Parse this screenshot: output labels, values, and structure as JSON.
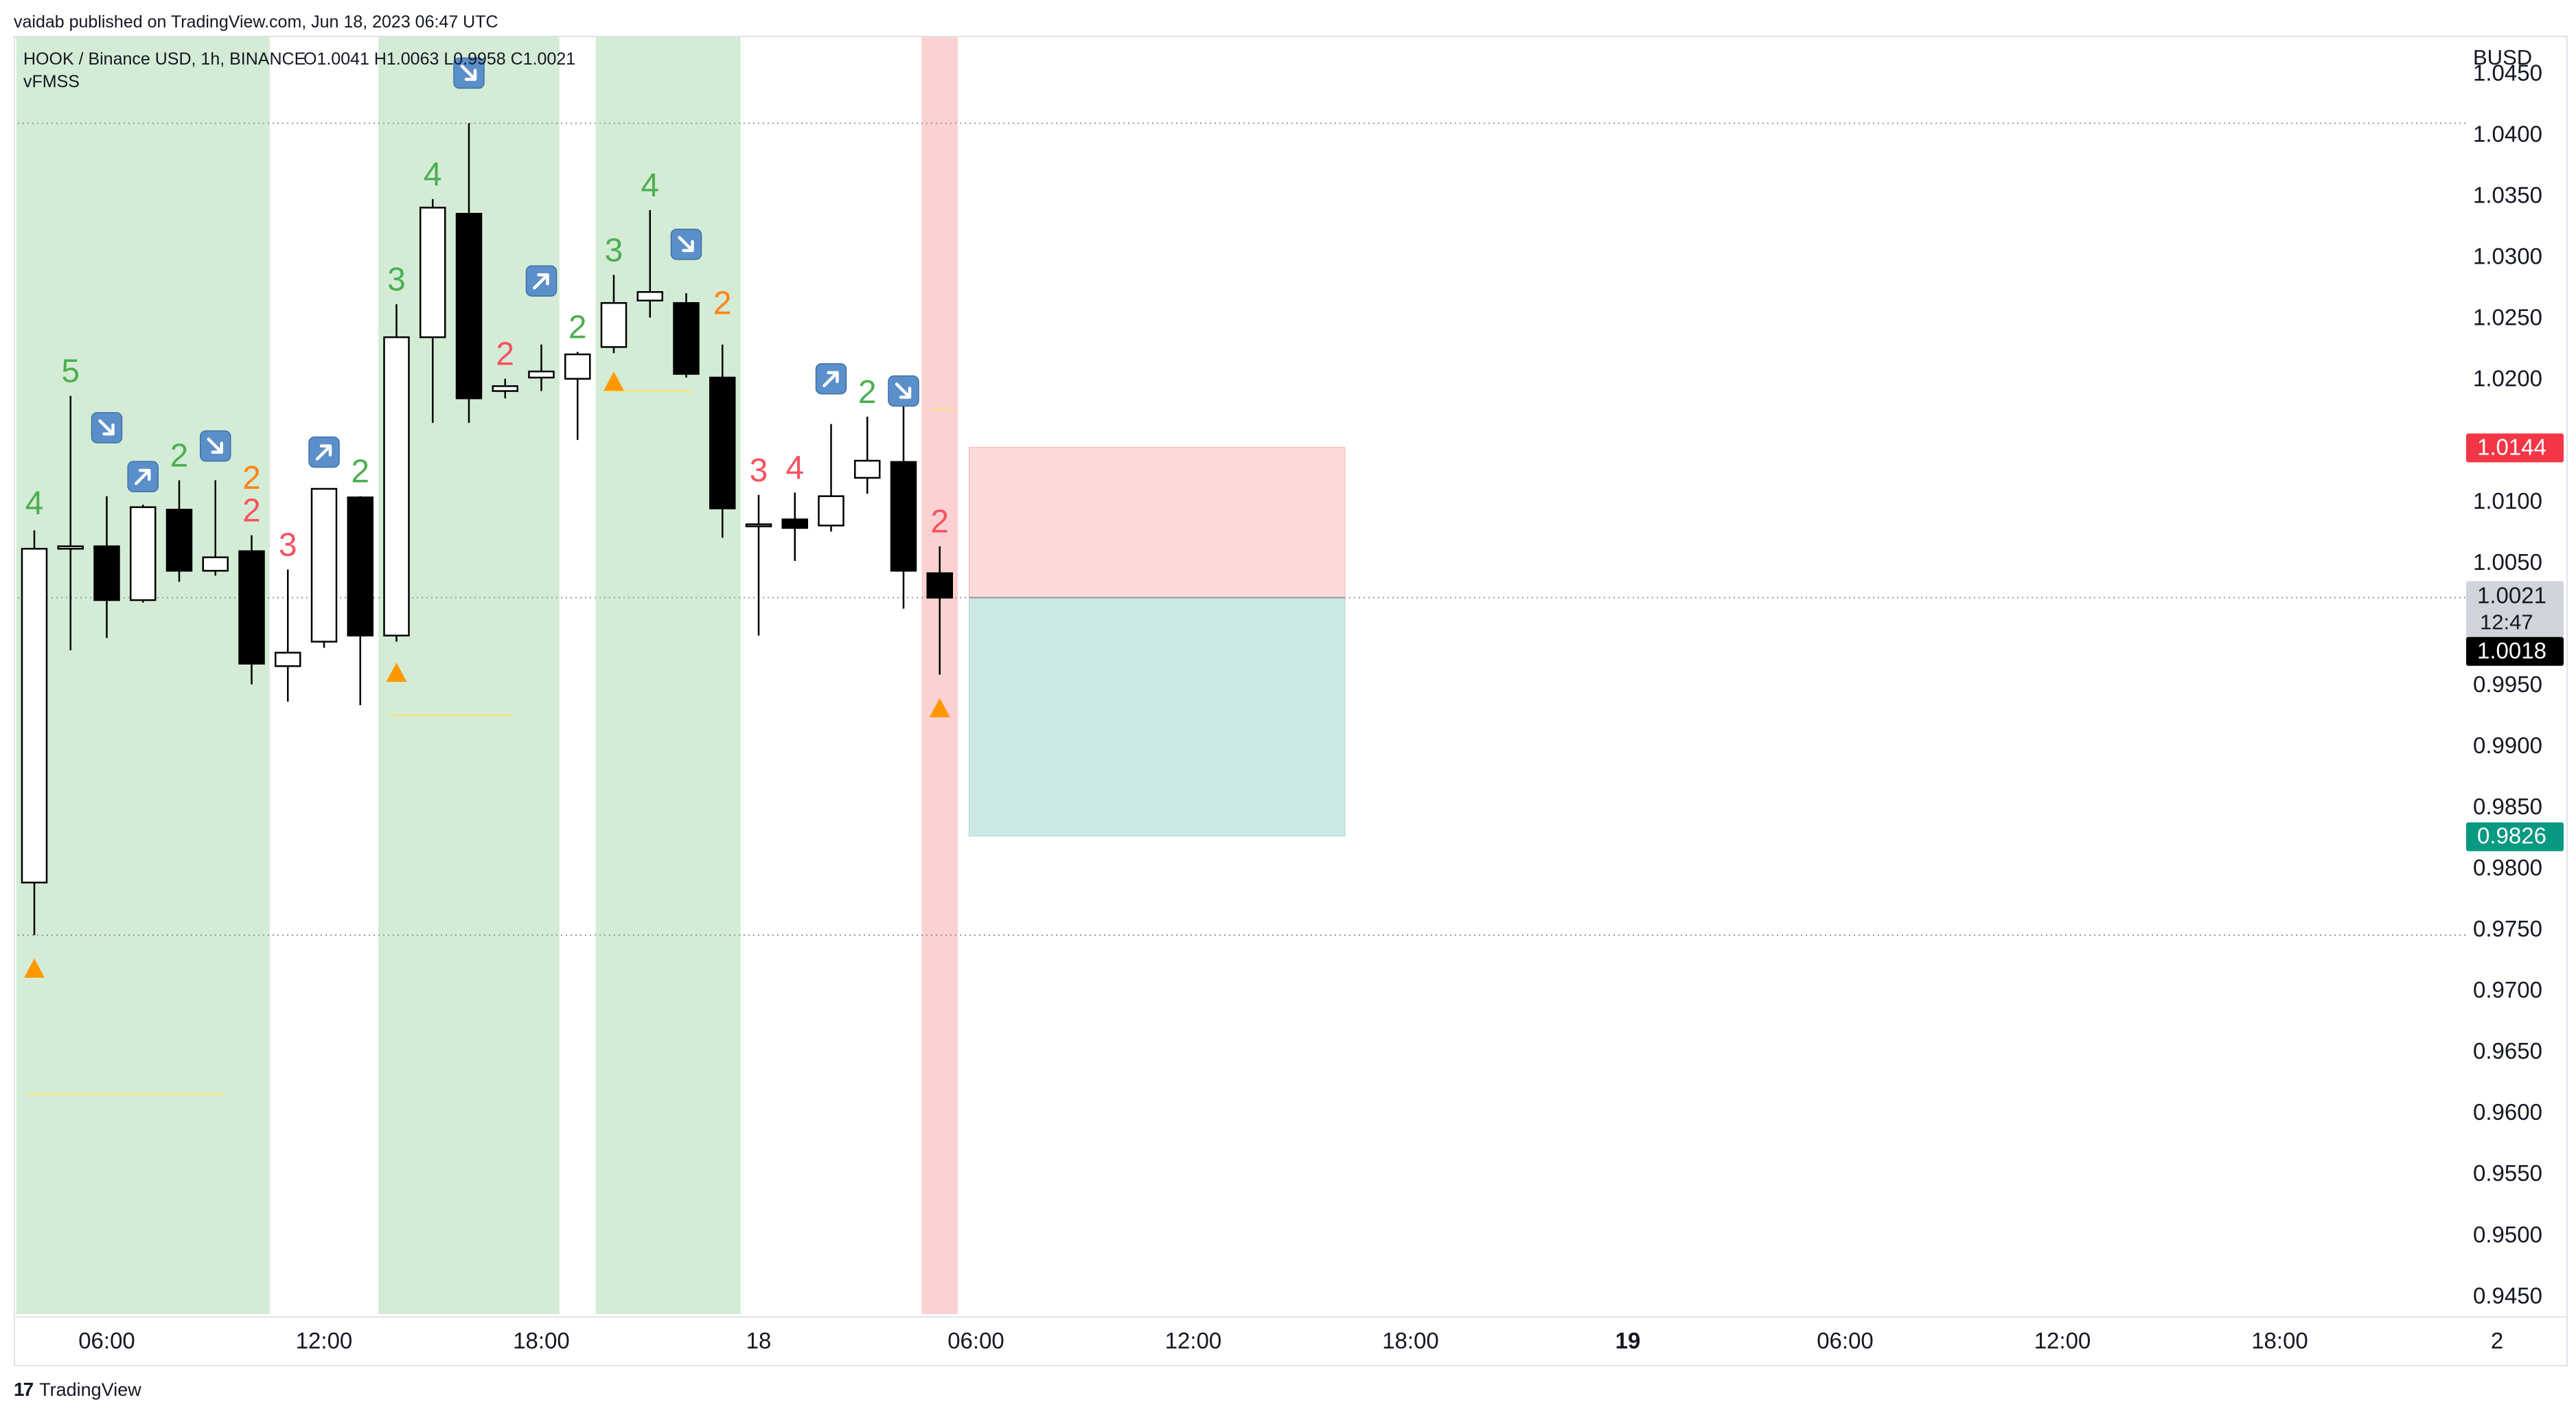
{
  "header": {
    "published": "vaidab published on TradingView.com, Jun 18, 2023 06:47 UTC"
  },
  "footer": {
    "logo_text": "TradingView",
    "logo_mark": "17"
  },
  "chart_data": {
    "type": "candlestick",
    "symbol_line": "HOOK / Binance USD, 1h, BINANCE",
    "ohlc_label": "O1.0041  H1.0063  L0.9958  C1.0021",
    "indicator": "vFMSS",
    "currency": "BUSD",
    "ylim": [
      0.9435,
      1.0475
    ],
    "y_ticks": [
      "1.0450",
      "1.0400",
      "1.0350",
      "1.0300",
      "1.0250",
      "1.0200",
      "1.0100",
      "1.0050",
      "0.9950",
      "0.9900",
      "0.9850",
      "0.9800",
      "0.9750",
      "0.9700",
      "0.9650",
      "0.9600",
      "0.9550",
      "0.9500",
      "0.9450"
    ],
    "x_ticks": [
      {
        "label": "06:00",
        "bold": false
      },
      {
        "label": "12:00",
        "bold": false
      },
      {
        "label": "18:00",
        "bold": false
      },
      {
        "label": "18",
        "bold": false
      },
      {
        "label": "06:00",
        "bold": false
      },
      {
        "label": "12:00",
        "bold": false
      },
      {
        "label": "18:00",
        "bold": false
      },
      {
        "label": "19",
        "bold": true
      },
      {
        "label": "06:00",
        "bold": false
      },
      {
        "label": "12:00",
        "bold": false
      },
      {
        "label": "18:00",
        "bold": false
      },
      {
        "label": "2",
        "bold": false
      }
    ],
    "candles": [
      {
        "o": 0.9788,
        "h": 1.0076,
        "l": 0.9745,
        "c": 1.0061
      },
      {
        "o": 1.0061,
        "h": 1.0186,
        "l": 0.9978,
        "c": 1.0063
      },
      {
        "o": 1.0063,
        "h": 1.0104,
        "l": 0.9988,
        "c": 1.0019
      },
      {
        "o": 1.0019,
        "h": 1.0097,
        "l": 1.0017,
        "c": 1.0095
      },
      {
        "o": 1.0093,
        "h": 1.0117,
        "l": 1.0034,
        "c": 1.0043
      },
      {
        "o": 1.0043,
        "h": 1.0117,
        "l": 1.0039,
        "c": 1.0054
      },
      {
        "o": 1.0059,
        "h": 1.0072,
        "l": 0.995,
        "c": 0.9967
      },
      {
        "o": 0.9965,
        "h": 1.0044,
        "l": 0.9936,
        "c": 0.9976
      },
      {
        "o": 0.9985,
        "h": 1.011,
        "l": 0.998,
        "c": 1.011
      },
      {
        "o": 1.0103,
        "h": 1.0104,
        "l": 0.9933,
        "c": 0.999
      },
      {
        "o": 0.999,
        "h": 1.0261,
        "l": 0.9985,
        "c": 1.0234
      },
      {
        "o": 1.0234,
        "h": 1.0347,
        "l": 1.0164,
        "c": 1.034
      },
      {
        "o": 1.0335,
        "h": 1.0409,
        "l": 1.0164,
        "c": 1.0184
      },
      {
        "o": 1.019,
        "h": 1.02,
        "l": 1.0184,
        "c": 1.0194
      },
      {
        "o": 1.0201,
        "h": 1.0228,
        "l": 1.019,
        "c": 1.0206
      },
      {
        "o": 1.02,
        "h": 1.0222,
        "l": 1.015,
        "c": 1.022
      },
      {
        "o": 1.0226,
        "h": 1.0285,
        "l": 1.0221,
        "c": 1.0262
      },
      {
        "o": 1.0264,
        "h": 1.0338,
        "l": 1.025,
        "c": 1.0271
      },
      {
        "o": 1.0262,
        "h": 1.027,
        "l": 1.0201,
        "c": 1.0204
      },
      {
        "o": 1.0201,
        "h": 1.0228,
        "l": 1.007,
        "c": 1.0094
      },
      {
        "o": 1.0081,
        "h": 1.0105,
        "l": 0.999,
        "c": 1.0081
      },
      {
        "o": 1.0085,
        "h": 1.0107,
        "l": 1.0051,
        "c": 1.0078
      },
      {
        "o": 1.008,
        "h": 1.0163,
        "l": 1.0075,
        "c": 1.0104
      },
      {
        "o": 1.0119,
        "h": 1.0169,
        "l": 1.0106,
        "c": 1.0133
      },
      {
        "o": 1.0132,
        "h": 1.0178,
        "l": 1.0012,
        "c": 1.0043
      },
      {
        "o": 1.0041,
        "h": 1.0063,
        "l": 0.9958,
        "c": 1.0021
      }
    ],
    "count_labels": [
      {
        "bar": 0,
        "text": "4",
        "color": "#4caf50",
        "price": 1.0078,
        "pos": "above"
      },
      {
        "bar": 1,
        "text": "5",
        "color": "#4caf50",
        "price": 1.0186,
        "pos": "above"
      },
      {
        "bar": 4,
        "text": "2",
        "color": "#4caf50",
        "price": 1.0117,
        "pos": "above"
      },
      {
        "bar": 6,
        "text": "2",
        "color": "#f7525f",
        "price": 1.0072,
        "pos": "above"
      },
      {
        "bar": 7,
        "text": "3",
        "color": "#f7525f",
        "price": 1.0044,
        "pos": "above"
      },
      {
        "bar": 9,
        "text": "2",
        "color": "#4caf50",
        "price": 1.0104,
        "pos": "above"
      },
      {
        "bar": 10,
        "text": "3",
        "color": "#4caf50",
        "price": 1.0261,
        "pos": "above"
      },
      {
        "bar": 11,
        "text": "4",
        "color": "#4caf50",
        "price": 1.0347,
        "pos": "above"
      },
      {
        "bar": 13,
        "text": "2",
        "color": "#f7525f",
        "price": 1.02,
        "pos": "above"
      },
      {
        "bar": 15,
        "text": "2",
        "color": "#4caf50",
        "price": 1.0222,
        "pos": "above"
      },
      {
        "bar": 16,
        "text": "3",
        "color": "#4caf50",
        "price": 1.0285,
        "pos": "above"
      },
      {
        "bar": 17,
        "text": "4",
        "color": "#4caf50",
        "price": 1.0338,
        "pos": "above"
      },
      {
        "bar": 20,
        "text": "3",
        "color": "#f7525f",
        "price": 1.0105,
        "pos": "above"
      },
      {
        "bar": 21,
        "text": "4",
        "color": "#f7525f",
        "price": 1.0107,
        "pos": "above"
      },
      {
        "bar": 23,
        "text": "2",
        "color": "#4caf50",
        "price": 1.0169,
        "pos": "above"
      },
      {
        "bar": 25,
        "text": "2",
        "color": "#f7525f",
        "price": 1.0063,
        "pos": "above"
      }
    ],
    "overlap_labels": [
      {
        "bar": 6,
        "text": "2",
        "price": 1.011
      },
      {
        "bar": 19,
        "text": "2",
        "price": 1.0253
      }
    ],
    "arrow_markers": [
      {
        "bar": 2,
        "dir": "down-right",
        "price": 1.016
      },
      {
        "bar": 3,
        "dir": "up-right",
        "price": 1.012
      },
      {
        "bar": 5,
        "dir": "down-right",
        "price": 1.0145
      },
      {
        "bar": 8,
        "dir": "up-right",
        "price": 1.014
      },
      {
        "bar": 12,
        "dir": "down-right",
        "price": 1.045
      },
      {
        "bar": 14,
        "dir": "up-right",
        "price": 1.028
      },
      {
        "bar": 18,
        "dir": "down-right",
        "price": 1.031
      },
      {
        "bar": 22,
        "dir": "up-right",
        "price": 1.02
      },
      {
        "bar": 24,
        "dir": "down-right",
        "price": 1.019
      }
    ],
    "triangle_markers": [
      {
        "bar": 0,
        "price": 0.9718
      },
      {
        "bar": 10,
        "price": 0.996
      },
      {
        "bar": 16,
        "price": 1.0198
      },
      {
        "bar": 25,
        "price": 0.9931
      }
    ],
    "yellow_lines": [
      {
        "from_bar": 0,
        "to_bar": 5,
        "price": 0.9615
      },
      {
        "from_bar": 10,
        "to_bar": 13,
        "price": 0.9925
      },
      {
        "from_bar": 16,
        "to_bar": 18,
        "price": 1.019
      },
      {
        "from_bar": 25,
        "to_bar": 25.2,
        "price": 1.0175
      }
    ],
    "green_bands": [
      {
        "from_bar": -0.5,
        "to_bar": 6.5
      },
      {
        "from_bar": 9.5,
        "to_bar": 14.5
      },
      {
        "from_bar": 15.5,
        "to_bar": 19.5
      }
    ],
    "red_band": {
      "from_bar": 24.5,
      "to_bar": 25.5
    },
    "dotted_levels": [
      1.0409,
      1.0021,
      0.9745
    ],
    "position_tool": {
      "from_bar": 26,
      "to_bar": 36,
      "stop_price": 1.0144,
      "entry_price": 1.0021,
      "target_price": 0.9826
    },
    "price_labels": {
      "stop": {
        "text": "1.0144",
        "color": "#f23645"
      },
      "current": {
        "text": "1.0021",
        "sub": "12:47"
      },
      "last": {
        "text": "1.0018"
      },
      "target": {
        "text": "0.9826",
        "color": "#089981"
      }
    },
    "colors": {
      "green_band": "#d4ecd5",
      "red_band": "#fbd1d1",
      "stop_zone": "#fddada",
      "target_zone": "#cde9e6",
      "count_green": "#4caf50",
      "count_red": "#f7525f",
      "triangle": "#ff9800",
      "yellow_line": "#f2e58a",
      "arrow_box": "#5b8fc9"
    }
  }
}
